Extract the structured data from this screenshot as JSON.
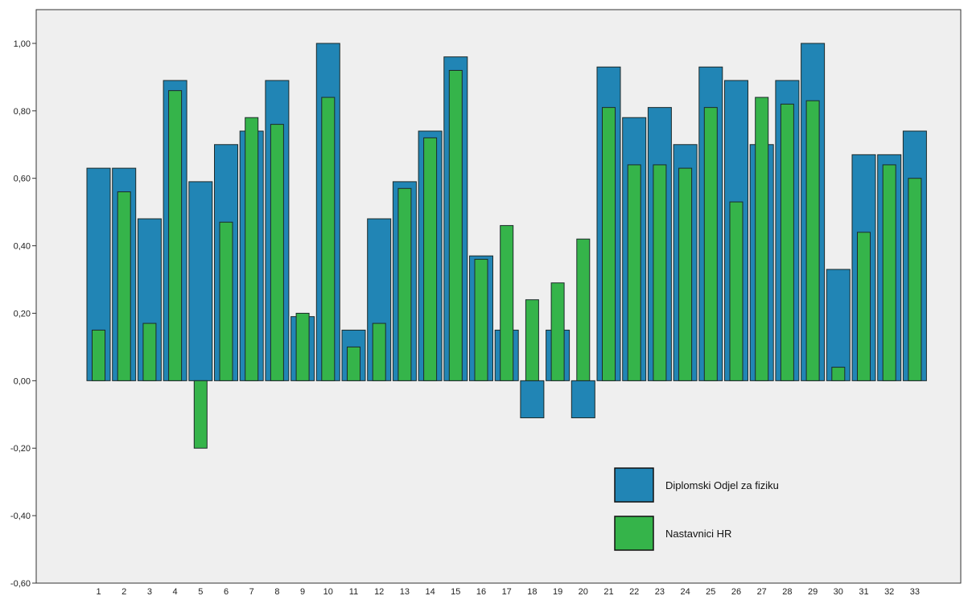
{
  "chart_data": {
    "type": "bar",
    "categories": [
      "1",
      "2",
      "3",
      "4",
      "5",
      "6",
      "7",
      "8",
      "9",
      "10",
      "11",
      "12",
      "13",
      "14",
      "15",
      "16",
      "17",
      "18",
      "19",
      "20",
      "21",
      "22",
      "23",
      "24",
      "25",
      "26",
      "27",
      "28",
      "29",
      "30",
      "31",
      "32",
      "33"
    ],
    "series": [
      {
        "name": "Diplomski Odjel za fiziku",
        "color": "#2185b5",
        "values": [
          0.63,
          0.63,
          0.48,
          0.89,
          0.59,
          0.7,
          0.74,
          0.89,
          0.19,
          1.0,
          0.15,
          0.48,
          0.59,
          0.74,
          0.96,
          0.37,
          0.15,
          -0.11,
          0.15,
          -0.11,
          0.93,
          0.78,
          0.81,
          0.7,
          0.93,
          0.89,
          0.7,
          0.89,
          1.0,
          0.33,
          0.67,
          0.67,
          0.74
        ]
      },
      {
        "name": "Nastavnici HR",
        "color": "#35b44a",
        "values": [
          0.15,
          0.56,
          0.17,
          0.86,
          -0.2,
          0.47,
          0.78,
          0.76,
          0.2,
          0.84,
          0.1,
          0.17,
          0.57,
          0.72,
          0.92,
          0.36,
          0.46,
          0.24,
          0.29,
          0.42,
          0.81,
          0.64,
          0.64,
          0.63,
          0.81,
          0.53,
          0.84,
          0.82,
          0.83,
          0.04,
          0.44,
          0.64,
          0.6
        ]
      }
    ],
    "yticks": [
      "1,00",
      "0,80",
      "0,60",
      "0,40",
      "0,20",
      "0,00",
      "-0,20",
      "-0,40",
      "-0,60"
    ],
    "ylim": [
      -0.6,
      1.1
    ],
    "grid": false,
    "legend_position": "bottom-right",
    "background": "#efefef"
  }
}
